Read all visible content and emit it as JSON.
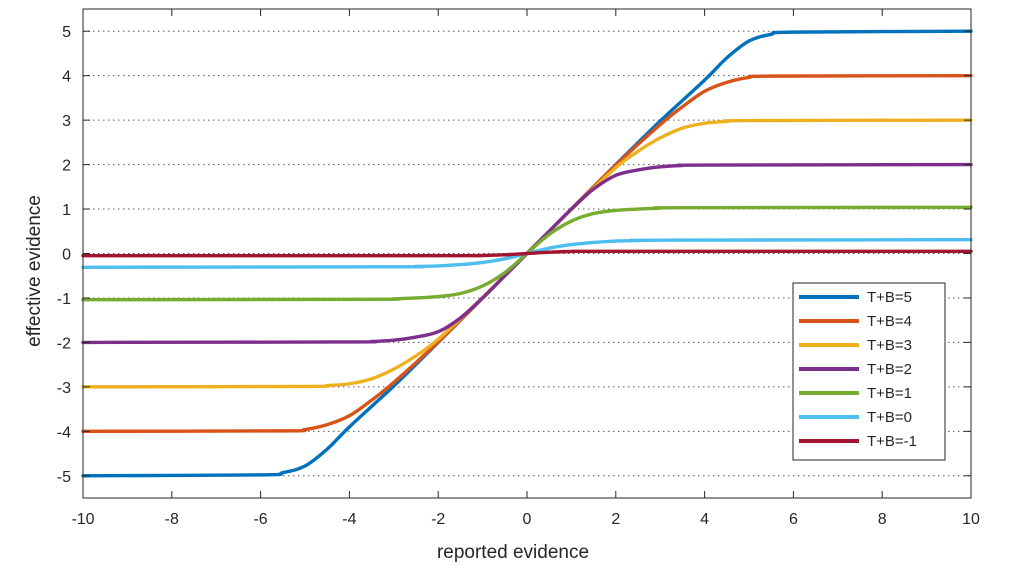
{
  "chart_data": {
    "type": "line",
    "xlabel": "reported evidence",
    "ylabel": "effective evidence",
    "xlim": [
      -10,
      10
    ],
    "ylim": [
      -5.5,
      5.5
    ],
    "xticks": [
      -10,
      -8,
      -6,
      -4,
      -2,
      0,
      2,
      4,
      6,
      8,
      10
    ],
    "yticks": [
      -5,
      -4,
      -3,
      -2,
      -1,
      0,
      1,
      2,
      3,
      4,
      5
    ],
    "grid": "horizontal dotted",
    "legend_position": "bottom-right",
    "series": [
      {
        "name": "T+B=5",
        "color": "#0072BD",
        "x": [
          -10,
          -6,
          -5.5,
          -5,
          -4.5,
          -4,
          -3,
          -2,
          -1,
          0,
          1,
          2,
          3,
          4,
          4.5,
          5,
          5.5,
          6,
          10
        ],
        "y": [
          -5,
          -4.98,
          -4.93,
          -4.78,
          -4.4,
          -3.9,
          -2.98,
          -2,
          -1,
          0,
          1,
          2,
          2.98,
          3.9,
          4.4,
          4.78,
          4.93,
          4.98,
          5
        ]
      },
      {
        "name": "T+B=4",
        "color": "#D95319",
        "x": [
          -10,
          -5.5,
          -5,
          -4.5,
          -4,
          -3.5,
          -3,
          -2,
          -1,
          0,
          1,
          2,
          3,
          3.5,
          4,
          4.5,
          5,
          5.5,
          10
        ],
        "y": [
          -4,
          -3.99,
          -3.96,
          -3.85,
          -3.65,
          -3.3,
          -2.9,
          -1.99,
          -1,
          0,
          1,
          1.99,
          2.9,
          3.3,
          3.65,
          3.85,
          3.96,
          3.99,
          4
        ]
      },
      {
        "name": "T+B=3",
        "color": "#EDB120",
        "x": [
          -10,
          -5,
          -4.5,
          -4,
          -3.5,
          -3,
          -2.5,
          -2,
          -1,
          0,
          1,
          2,
          2.5,
          3,
          3.5,
          4,
          4.5,
          5,
          10
        ],
        "y": [
          -3,
          -2.99,
          -2.97,
          -2.93,
          -2.82,
          -2.6,
          -2.3,
          -1.93,
          -0.99,
          0,
          0.99,
          1.93,
          2.3,
          2.6,
          2.82,
          2.93,
          2.97,
          2.99,
          3
        ]
      },
      {
        "name": "T+B=2",
        "color": "#7E2F8E",
        "x": [
          -10,
          -4,
          -3.5,
          -3,
          -2.5,
          -2,
          -1.5,
          -1,
          -0.5,
          0,
          0.5,
          1,
          1.5,
          2,
          2.5,
          3,
          3.5,
          4,
          10
        ],
        "y": [
          -2,
          -1.99,
          -1.98,
          -1.95,
          -1.88,
          -1.76,
          -1.45,
          -1.0,
          -0.5,
          0,
          0.5,
          1.0,
          1.45,
          1.76,
          1.88,
          1.95,
          1.98,
          1.99,
          2
        ]
      },
      {
        "name": "T+B=1",
        "color": "#77AC30",
        "x": [
          -10,
          -3.5,
          -3,
          -2.5,
          -2,
          -1.5,
          -1,
          -0.5,
          0,
          0.5,
          1,
          1.5,
          2,
          2.5,
          3,
          3.5,
          10
        ],
        "y": [
          -1.04,
          -1.03,
          -1.02,
          -1.0,
          -0.97,
          -0.9,
          -0.73,
          -0.43,
          0,
          0.43,
          0.73,
          0.9,
          0.97,
          1.0,
          1.02,
          1.03,
          1.04
        ]
      },
      {
        "name": "T+B=0",
        "color": "#4DBEEE",
        "x": [
          -10,
          -3,
          -2.5,
          -2,
          -1.5,
          -1,
          -0.5,
          0,
          0.5,
          1,
          1.5,
          2,
          2.5,
          3,
          10
        ],
        "y": [
          -0.31,
          -0.3,
          -0.29,
          -0.28,
          -0.25,
          -0.2,
          -0.12,
          0,
          0.12,
          0.2,
          0.25,
          0.28,
          0.29,
          0.3,
          0.31
        ]
      },
      {
        "name": "T+B=-1",
        "color": "#A2142F",
        "x": [
          -10,
          -2,
          -1,
          -0.5,
          0,
          0.5,
          1,
          2,
          10
        ],
        "y": [
          -0.05,
          -0.05,
          -0.045,
          -0.03,
          0,
          0.03,
          0.045,
          0.05,
          0.05
        ]
      }
    ]
  }
}
